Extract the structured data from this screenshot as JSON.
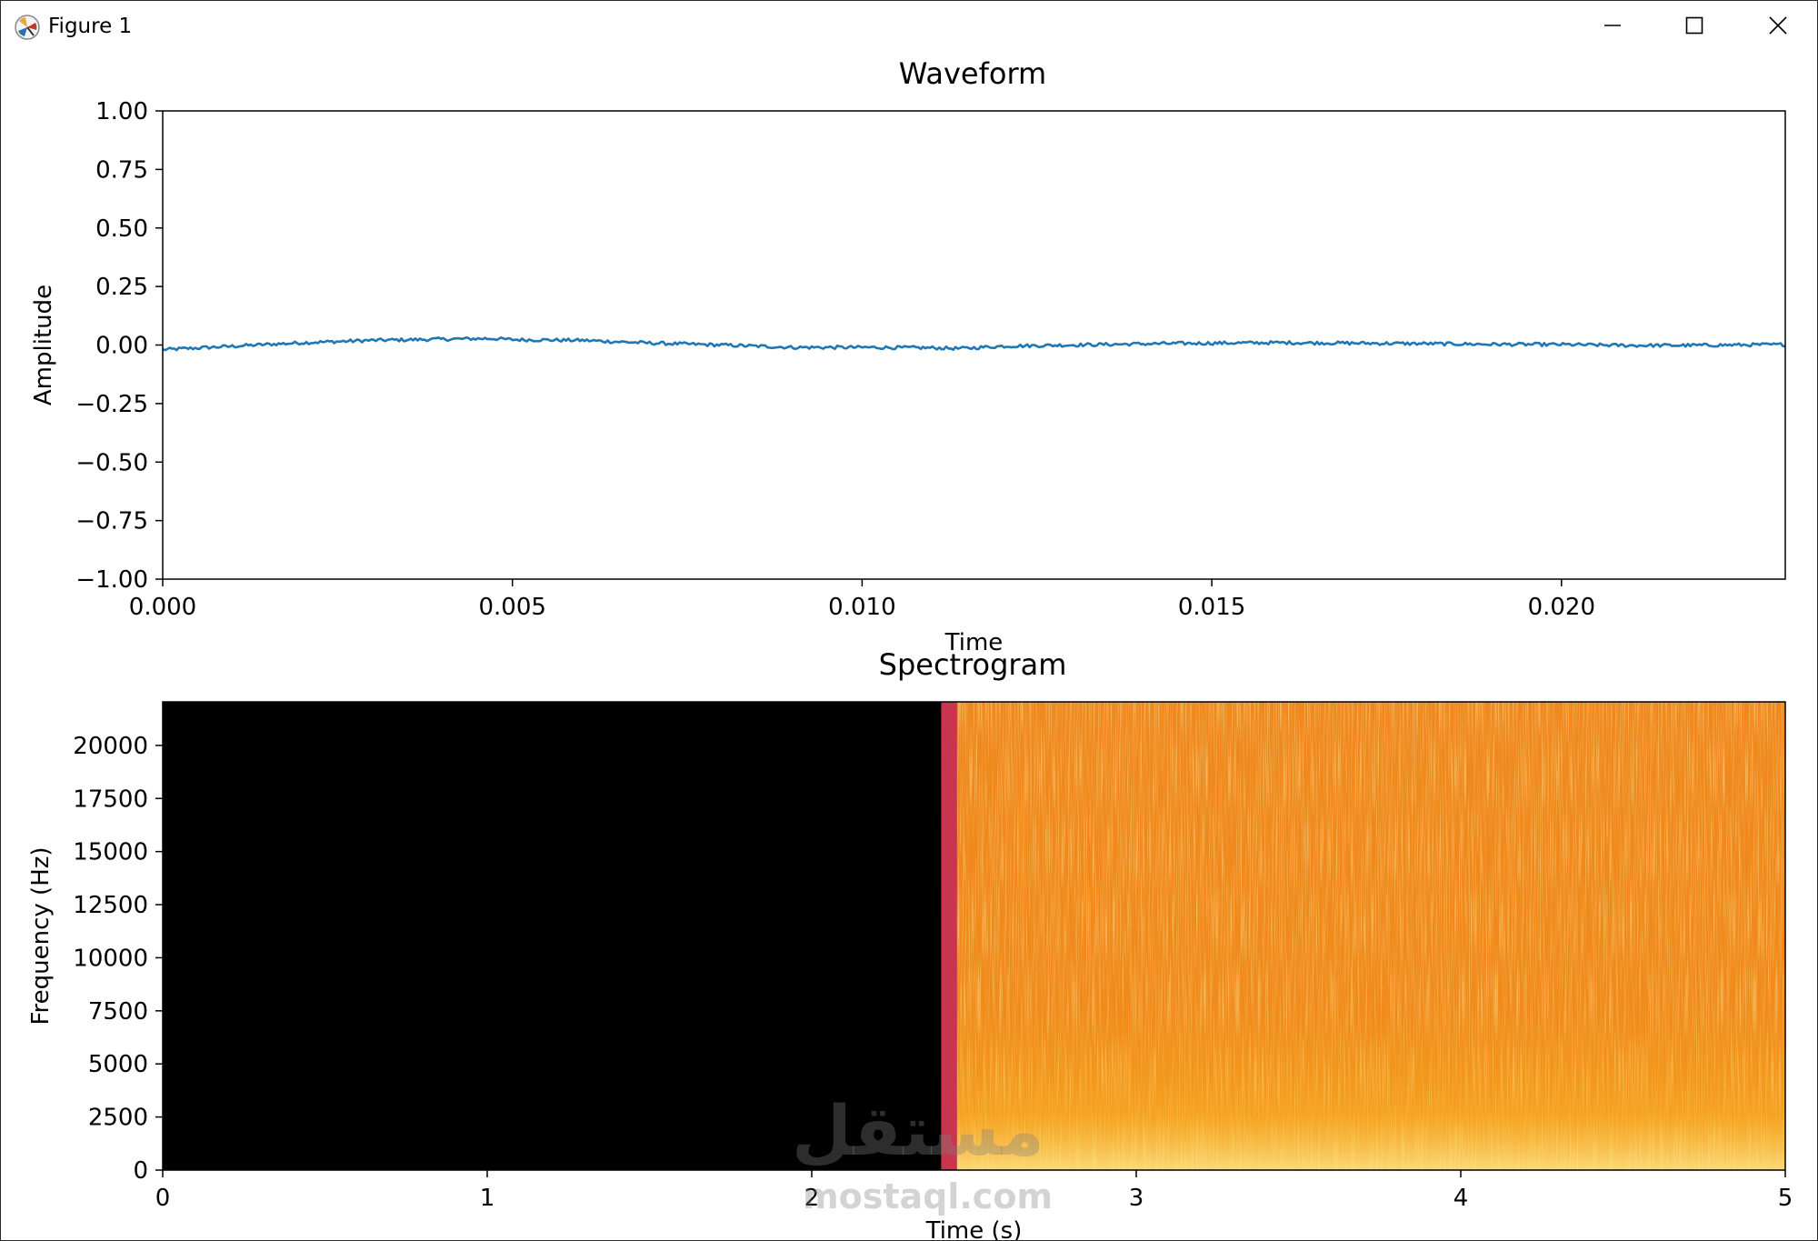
{
  "window": {
    "title": "Figure 1",
    "icon": "matplotlib-logo-icon",
    "controls": [
      "minimize-icon",
      "maximize-icon",
      "close-icon"
    ]
  },
  "watermark": {
    "arabic": "مستقل",
    "latin": "mostaql.com"
  },
  "chart_data": [
    {
      "type": "line",
      "title": "Waveform",
      "xlabel": "Time",
      "ylabel": "Amplitude",
      "xlim": [
        0,
        0.0232
      ],
      "ylim": [
        -1.0,
        1.0
      ],
      "xticks": [
        "0.000",
        "0.005",
        "0.010",
        "0.015",
        "0.020"
      ],
      "yticks": [
        "1.00",
        "0.75",
        "0.50",
        "0.25",
        "0.00",
        "−0.25",
        "−0.50",
        "−0.75",
        "−1.00"
      ],
      "line_color": "#1f77b4",
      "grid": false,
      "series": [
        {
          "x": [
            0.0,
            0.001,
            0.002,
            0.003,
            0.004,
            0.0047,
            0.005,
            0.006,
            0.007,
            0.008,
            0.009,
            0.01,
            0.011,
            0.0114,
            0.012,
            0.013,
            0.014,
            0.015,
            0.016,
            0.017,
            0.018,
            0.019,
            0.02,
            0.021,
            0.022,
            0.0232
          ],
          "y": [
            -0.02,
            -0.005,
            0.01,
            0.02,
            0.025,
            0.028,
            0.023,
            0.02,
            0.008,
            0.0,
            -0.01,
            -0.01,
            -0.012,
            -0.015,
            -0.005,
            0.0,
            0.005,
            0.008,
            0.01,
            0.008,
            0.006,
            0.003,
            0.002,
            -0.002,
            -0.001,
            0.002
          ]
        }
      ]
    },
    {
      "type": "heatmap",
      "title": "Spectrogram",
      "xlabel": "Time (s)",
      "ylabel": "Frequency (Hz)",
      "xlim": [
        0,
        5
      ],
      "ylim": [
        0,
        22050
      ],
      "xticks": [
        "0",
        "1",
        "2",
        "3",
        "4",
        "5"
      ],
      "yticks": [
        "20000",
        "17500",
        "15000",
        "12500",
        "10000",
        "7500",
        "5000",
        "2500",
        "0"
      ],
      "colormap": "inferno",
      "silent_until_s": 2.4,
      "colors": {
        "silence": "#000000",
        "onset": "#c9344e",
        "body": "#f0871a",
        "bright": "#fbd04a"
      }
    }
  ]
}
